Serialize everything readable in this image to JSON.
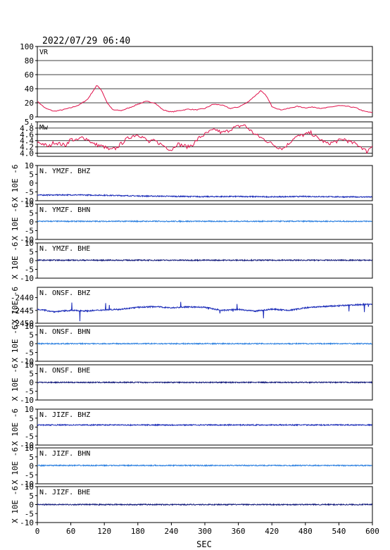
{
  "header": {
    "datetime": "2022/07/29  06:40"
  },
  "x_axis": {
    "label": "SEC",
    "ticks": [
      0,
      60,
      120,
      180,
      240,
      300,
      360,
      420,
      480,
      540,
      600
    ],
    "range": [
      0,
      600
    ]
  },
  "colors": {
    "vr": "#e0104a",
    "mw": "#e0104a",
    "bhz": "#1a2bb8",
    "bhn": "#2a7fe0",
    "bhe": "#10187a",
    "frame": "#000000"
  },
  "chart_data": [
    {
      "type": "line",
      "name": "VR",
      "panel_label": "VR",
      "ylim": [
        0,
        100
      ],
      "yticks": [
        0,
        20,
        40,
        60,
        80,
        100
      ],
      "ylabel": "",
      "grid": true,
      "color_key": "vr",
      "x": [
        0,
        15,
        30,
        45,
        60,
        75,
        90,
        100,
        107,
        115,
        125,
        135,
        150,
        165,
        180,
        195,
        210,
        225,
        240,
        255,
        270,
        285,
        300,
        315,
        330,
        345,
        360,
        375,
        390,
        400,
        410,
        420,
        435,
        450,
        465,
        480,
        495,
        510,
        525,
        540,
        555,
        570,
        585,
        600
      ],
      "y": [
        22,
        12,
        8,
        10,
        13,
        17,
        25,
        37,
        45,
        38,
        20,
        10,
        9,
        13,
        18,
        22,
        20,
        10,
        7,
        9,
        11,
        10,
        12,
        18,
        17,
        12,
        14,
        20,
        30,
        37,
        30,
        15,
        10,
        12,
        15,
        13,
        14,
        12,
        14,
        16,
        15,
        13,
        8,
        6
      ]
    },
    {
      "type": "line",
      "name": "Mw",
      "panel_label": "Mw",
      "ylim": [
        3.9,
        5.0
      ],
      "yticks": [
        4.0,
        4.2,
        4.4,
        4.6,
        4.8,
        5.0
      ],
      "ytick_labels": [
        "4.0",
        "4.2",
        "4.4",
        "4.6",
        "4.8",
        "5."
      ],
      "ylabel": "",
      "grid": true,
      "color_key": "mw",
      "x": [
        0,
        10,
        20,
        30,
        40,
        50,
        60,
        70,
        80,
        90,
        100,
        110,
        120,
        130,
        140,
        150,
        160,
        170,
        180,
        190,
        200,
        210,
        220,
        230,
        240,
        250,
        260,
        270,
        280,
        290,
        300,
        310,
        320,
        330,
        340,
        350,
        360,
        370,
        380,
        390,
        400,
        410,
        420,
        430,
        440,
        450,
        460,
        470,
        480,
        490,
        500,
        510,
        520,
        530,
        540,
        550,
        560,
        570,
        580,
        590,
        600
      ],
      "y": [
        4.35,
        4.3,
        4.2,
        4.35,
        4.3,
        4.25,
        4.45,
        4.4,
        4.5,
        4.45,
        4.3,
        4.25,
        4.2,
        4.1,
        4.15,
        4.3,
        4.45,
        4.55,
        4.6,
        4.5,
        4.35,
        4.4,
        4.3,
        4.2,
        4.1,
        4.3,
        4.25,
        4.2,
        4.3,
        4.5,
        4.6,
        4.7,
        4.75,
        4.65,
        4.7,
        4.8,
        4.85,
        4.9,
        4.75,
        4.6,
        4.5,
        4.4,
        4.3,
        4.2,
        4.15,
        4.3,
        4.5,
        4.55,
        4.6,
        4.65,
        4.5,
        4.4,
        4.3,
        4.35,
        4.4,
        4.45,
        4.35,
        4.3,
        4.2,
        4.05,
        4.25
      ]
    },
    {
      "type": "line",
      "name": "N.YMZF.BHZ",
      "panel_label": "N. YMZF. BHZ",
      "ylim": [
        -10,
        10
      ],
      "yticks": [
        -10,
        -5,
        0,
        5,
        10
      ],
      "ylabel": "X 10E -6",
      "color_key": "bhz",
      "x": [
        0,
        60,
        120,
        180,
        240,
        300,
        360,
        420,
        480,
        540,
        600
      ],
      "y": [
        -6.8,
        -6.7,
        -6.9,
        -7.3,
        -7.5,
        -7.7,
        -7.6,
        -7.8,
        -7.6,
        -7.8,
        -7.9
      ]
    },
    {
      "type": "line",
      "name": "N.YMZF.BHN",
      "panel_label": "N. YMZF. BHN",
      "ylim": [
        -10,
        10
      ],
      "yticks": [
        -10,
        -5,
        0,
        5,
        10
      ],
      "ylabel": "X 10E -6",
      "color_key": "bhn",
      "x": [
        0,
        600
      ],
      "y": [
        0.3,
        0.3
      ]
    },
    {
      "type": "line",
      "name": "N.YMZF.BHE",
      "panel_label": "N. YMZF. BHE",
      "ylim": [
        -10,
        10
      ],
      "yticks": [
        -10,
        -5,
        0,
        5,
        10
      ],
      "ylabel": "X 10E -6",
      "color_key": "bhe",
      "x": [
        0,
        600
      ],
      "y": [
        0.2,
        0.2
      ]
    },
    {
      "type": "line",
      "name": "N.ONSF.BHZ",
      "panel_label": "N. ONSF. BHZ",
      "ylim": [
        -2450,
        -2436
      ],
      "yticks": [
        -2450,
        -2445,
        -2440
      ],
      "ylabel": "X 10E -6",
      "color_key": "bhz",
      "x": [
        0,
        30,
        60,
        90,
        120,
        150,
        180,
        210,
        240,
        270,
        300,
        330,
        360,
        390,
        420,
        450,
        480,
        510,
        540,
        570,
        600
      ],
      "y": [
        -2444.5,
        -2445.5,
        -2445,
        -2445.2,
        -2444.8,
        -2444.5,
        -2443.8,
        -2443.5,
        -2444,
        -2443.6,
        -2443.8,
        -2445,
        -2444.6,
        -2445.3,
        -2444.5,
        -2445,
        -2444,
        -2443.5,
        -2443.2,
        -2442.8,
        -2442.5
      ]
    },
    {
      "type": "line",
      "name": "N.ONSF.BHN",
      "panel_label": "N. ONSF. BHN",
      "ylim": [
        -10,
        10
      ],
      "yticks": [
        -10,
        -5,
        0,
        5,
        10
      ],
      "ylabel": "X 10E -6",
      "color_key": "bhn",
      "x": [
        0,
        600
      ],
      "y": [
        0,
        0
      ]
    },
    {
      "type": "line",
      "name": "N.ONSF.BHE",
      "panel_label": "N. ONSF. BHE",
      "ylim": [
        -10,
        10
      ],
      "yticks": [
        -10,
        -5,
        0,
        5,
        10
      ],
      "ylabel": "X 10E -6",
      "color_key": "bhe",
      "x": [
        0,
        600
      ],
      "y": [
        0,
        0
      ]
    },
    {
      "type": "line",
      "name": "N.JIZF.BHZ",
      "panel_label": "N. JIZF. BHZ",
      "ylim": [
        -10,
        10
      ],
      "yticks": [
        -10,
        -5,
        0,
        5,
        10
      ],
      "ylabel": "X 10E -6",
      "color_key": "bhz",
      "x": [
        0,
        600
      ],
      "y": [
        1.2,
        1.2
      ]
    },
    {
      "type": "line",
      "name": "N.JIZF.BHN",
      "panel_label": "N. JIZF. BHN",
      "ylim": [
        -10,
        10
      ],
      "yticks": [
        -10,
        -5,
        0,
        5,
        10
      ],
      "ylabel": "X 10E -6",
      "color_key": "bhn",
      "x": [
        0,
        600
      ],
      "y": [
        0.2,
        0.2
      ]
    },
    {
      "type": "line",
      "name": "N.JIZF.BHE",
      "panel_label": "N. JIZF. BHE",
      "ylim": [
        -10,
        10
      ],
      "yticks": [
        -10,
        -5,
        0,
        5,
        10
      ],
      "ylabel": "X 10E -6",
      "color_key": "bhe",
      "x": [
        0,
        600
      ],
      "y": [
        0.0,
        0.0
      ]
    }
  ]
}
